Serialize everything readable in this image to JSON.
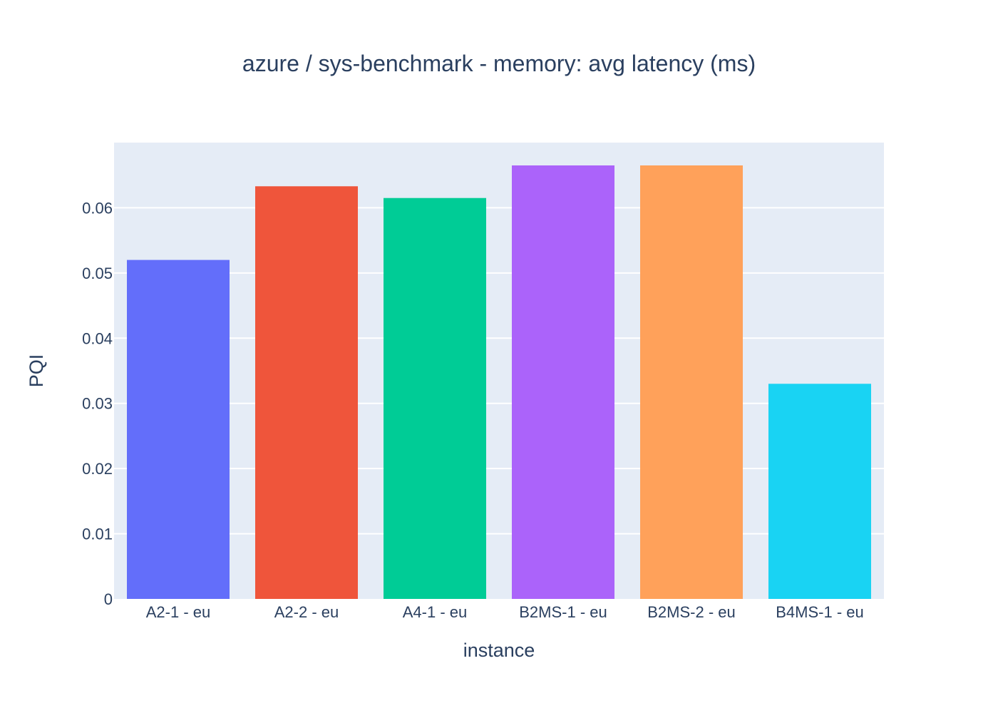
{
  "chart_data": {
    "type": "bar",
    "title": "azure / sys-benchmark - memory: avg latency (ms)",
    "xlabel": "instance",
    "ylabel": "PQI",
    "categories": [
      "A2-1 - eu",
      "A2-2 - eu",
      "A4-1 - eu",
      "B2MS-1 - eu",
      "B2MS-2 - eu",
      "B4MS-1 - eu"
    ],
    "values": [
      0.052,
      0.0633,
      0.0615,
      0.0665,
      0.0665,
      0.033
    ],
    "colors": [
      "#636efa",
      "#ef553b",
      "#00cc96",
      "#ab63fa",
      "#ffa15a",
      "#19d3f3"
    ],
    "ylim": [
      0,
      0.07
    ],
    "yticks": [
      0,
      0.01,
      0.02,
      0.03,
      0.04,
      0.05,
      0.06
    ],
    "ytick_labels": [
      "0",
      "0.01",
      "0.02",
      "0.03",
      "0.04",
      "0.05",
      "0.06"
    ],
    "grid": true,
    "plot_background": "#e5ecf6",
    "grid_color": "#ffffff",
    "text_color": "#2a3f5f"
  }
}
